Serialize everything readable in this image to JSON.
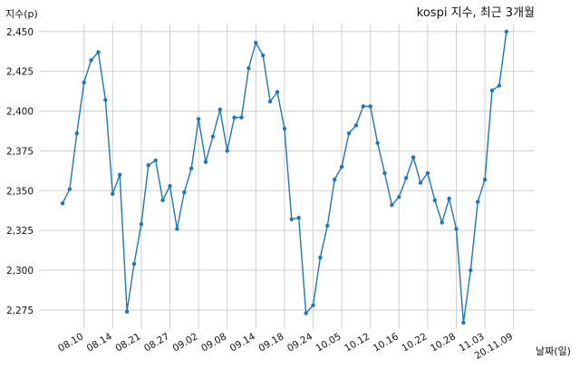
{
  "chart_data": {
    "type": "line",
    "title": "kospi 지수, 최근 3개월",
    "xlabel": "날짜(일)",
    "ylabel": "지수(p)",
    "ylim": [
      2263,
      2455
    ],
    "grid": true,
    "y_ticks": [
      "2,275",
      "2,300",
      "2,325",
      "2,350",
      "2,375",
      "2,400",
      "2,425",
      "2,450"
    ],
    "y_tick_values": [
      2275,
      2300,
      2325,
      2350,
      2375,
      2400,
      2425,
      2450
    ],
    "x_tick_labels": [
      "08.10",
      "08.14",
      "08.21",
      "08.27",
      "09.02",
      "09.08",
      "09.14",
      "09.18",
      "09.24",
      "10.05",
      "10.12",
      "10.16",
      "10.22",
      "10.28",
      "11.03",
      "20.11.09"
    ],
    "x_tick_indices": [
      3,
      7,
      11,
      15,
      19,
      23,
      27,
      31,
      35,
      39,
      43,
      47,
      51,
      55,
      59,
      63
    ],
    "series": [
      {
        "color": "#1f77b4",
        "values": [
          2342,
          2351,
          2386,
          2418,
          2432,
          2437,
          2407,
          2348,
          2360,
          2274,
          2304,
          2329,
          2366,
          2369,
          2344,
          2353,
          2326,
          2349,
          2364,
          2395,
          2368,
          2384,
          2401,
          2375,
          2396,
          2396,
          2427,
          2443,
          2435,
          2406,
          2412,
          2389,
          2332,
          2333,
          2273,
          2278,
          2308,
          2328,
          2357,
          2365,
          2386,
          2391,
          2403,
          2403,
          2380,
          2361,
          2341,
          2346,
          2358,
          2371,
          2355,
          2361,
          2344,
          2330,
          2345,
          2326,
          2267,
          2300,
          2343,
          2357,
          2413,
          2416,
          2450
        ]
      }
    ]
  }
}
